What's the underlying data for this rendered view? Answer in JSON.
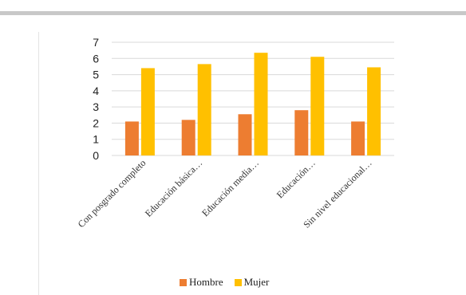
{
  "chart_data": {
    "type": "bar",
    "categories": [
      "Con posgrado completo",
      "Educación básica…",
      "Educación media…",
      "Educación…",
      "Sin nivel educacional…"
    ],
    "series": [
      {
        "name": "Hombre",
        "values": [
          2.1,
          2.2,
          2.55,
          2.8,
          2.1
        ],
        "color": "#ed7d31"
      },
      {
        "name": "Mujer",
        "values": [
          5.4,
          5.65,
          6.35,
          6.1,
          5.45
        ],
        "color": "#ffc000"
      }
    ],
    "yticks": [
      0,
      1,
      2,
      3,
      4,
      5,
      6,
      7
    ],
    "ylim": [
      0,
      7
    ],
    "grid": true,
    "legend_position": "bottom"
  }
}
